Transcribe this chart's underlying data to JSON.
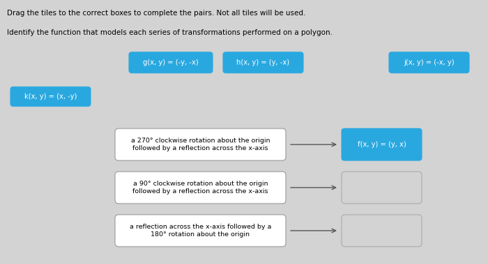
{
  "background_color": "#d3d3d3",
  "title_line1": "Drag the tiles to the correct boxes to complete the pairs. Not all tiles will be used.",
  "title_line2": "Identify the function that models each series of transformations performed on a polygon.",
  "tile_color": "#29a8e0",
  "tiles_row1": [
    "g(x, y) = (-y, -x)",
    "h(x, y) = (y, -x)",
    "j(x, y) = (-x, y)"
  ],
  "tile_row2": "k(x, y) = (x, -y)",
  "description_boxes": [
    "a 270° clockwise rotation about the origin\nfollowed by a reflection across the x-axis",
    "a 90° clockwise rotation about the origin\nfollowed by a reflection across the x-axis",
    "a reflection across the x-axis followed by a\n180° rotation about the origin"
  ],
  "answer_box_filled": "f(x, y) = (y, x)",
  "font_size_title": 7.5,
  "font_size_tile": 7.2,
  "font_size_desc": 6.8,
  "font_size_answer": 7.2
}
